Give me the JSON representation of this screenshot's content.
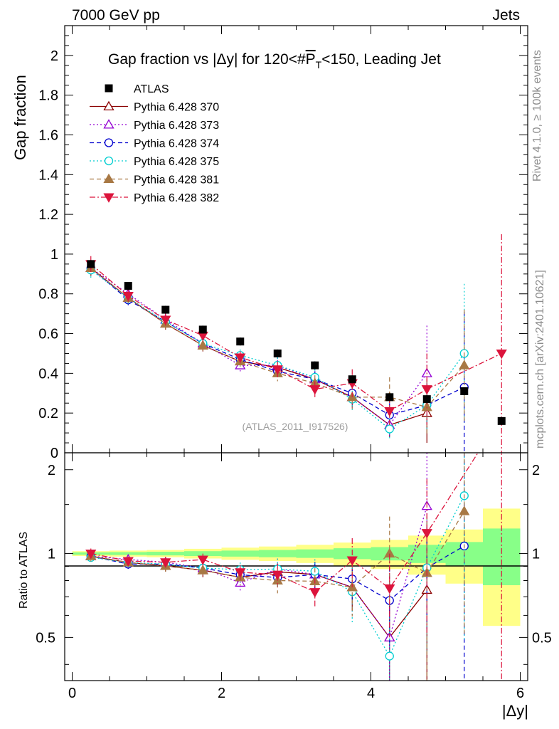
{
  "chart_data": {
    "type": "scatter",
    "header_left": "7000 GeV pp",
    "header_right": "Jets",
    "title": "Gap fraction vs |Δy| for 120<#P̅_T<150, Leading Jet",
    "title_parts": {
      "prefix": "Gap fraction vs |Δy| for 120<#",
      "p": "P",
      "sub": "T",
      "suffix": "<150, Leading Jet"
    },
    "xlabel": "|Δy|",
    "ylabel_top": "Gap fraction",
    "ylabel_bottom": "Ratio to ATLAS",
    "watermark": "(ATLAS_2011_I917526)",
    "side_label_1": "Rivet 4.1.0, ≥ 100k events",
    "side_label_2": "mcplots.cern.ch [arXiv:2401.10621]",
    "xlim": [
      -0.1,
      6.1
    ],
    "ylim_top": [
      0,
      2.15
    ],
    "ylim_bottom": [
      0.35,
      2.3
    ],
    "x_ticks": [
      "0",
      "2",
      "4",
      "6"
    ],
    "y_ticks_top": [
      "0",
      "0.2",
      "0.4",
      "0.6",
      "0.8",
      "1",
      "1.2",
      "1.4",
      "1.6",
      "1.8",
      "2"
    ],
    "y_ticks_bottom": [
      "0.5",
      "1",
      "2"
    ],
    "x": [
      0.25,
      0.75,
      1.25,
      1.75,
      2.25,
      2.75,
      3.25,
      3.75,
      4.25,
      4.75,
      5.25,
      5.75
    ],
    "data": {
      "name": "ATLAS",
      "values": [
        0.95,
        0.84,
        0.72,
        0.62,
        0.56,
        0.5,
        0.44,
        0.37,
        0.28,
        0.27,
        0.31,
        0.16
      ],
      "errors": [
        0.02,
        0.02,
        0.02,
        0.02,
        0.02,
        0.02,
        0.02,
        0.02,
        0.02,
        0.02,
        0.02,
        0.02
      ],
      "band_inner": [
        0.01,
        0.012,
        0.015,
        0.02,
        0.025,
        0.03,
        0.035,
        0.045,
        0.055,
        0.075,
        0.1,
        0.23
      ],
      "band_outer": [
        0.02,
        0.025,
        0.03,
        0.04,
        0.05,
        0.06,
        0.075,
        0.095,
        0.12,
        0.16,
        0.22,
        0.45
      ]
    },
    "series": [
      {
        "name": "Pythia 6.428 370",
        "color": "#8b0000",
        "marker": "triangle-open",
        "dash": "",
        "label_key": "s370",
        "values": [
          0.93,
          0.78,
          0.65,
          0.54,
          0.46,
          0.43,
          0.37,
          0.28,
          0.14,
          0.2,
          null,
          null
        ],
        "errors": [
          0.04,
          0.03,
          0.03,
          0.03,
          0.03,
          0.03,
          0.04,
          0.05,
          0.06,
          0.15,
          null,
          null
        ]
      },
      {
        "name": "Pythia 6.428 373",
        "color": "#9400d3",
        "marker": "triangle-open",
        "dash": "2,3",
        "label_key": "s373",
        "values": [
          0.93,
          0.8,
          0.67,
          0.55,
          0.44,
          0.44,
          0.37,
          0.28,
          0.14,
          0.4,
          null,
          null
        ],
        "errors": [
          0.04,
          0.03,
          0.03,
          0.03,
          0.03,
          0.04,
          0.04,
          0.06,
          0.06,
          0.24,
          null,
          null
        ]
      },
      {
        "name": "Pythia 6.428 374",
        "color": "#0000cd",
        "marker": "circle-open",
        "dash": "6,4",
        "label_key": "s374",
        "values": [
          0.93,
          0.77,
          0.66,
          0.55,
          0.47,
          0.41,
          0.37,
          0.3,
          0.19,
          0.24,
          0.33,
          null
        ],
        "errors": [
          0.04,
          0.03,
          0.03,
          0.03,
          0.03,
          0.03,
          0.04,
          0.05,
          0.06,
          0.1,
          0.38,
          null
        ]
      },
      {
        "name": "Pythia 6.428 375",
        "color": "#00ced1",
        "marker": "circle-open",
        "dash": "2,3",
        "label_key": "s375",
        "values": [
          0.92,
          0.78,
          0.66,
          0.55,
          0.49,
          0.44,
          0.38,
          0.27,
          0.12,
          0.24,
          0.5,
          null
        ],
        "errors": [
          0.04,
          0.03,
          0.03,
          0.03,
          0.03,
          0.04,
          0.04,
          0.06,
          0.05,
          0.12,
          0.35,
          null
        ]
      },
      {
        "name": "Pythia 6.428 381",
        "color": "#a87844",
        "marker": "triangle-filled",
        "dash": "6,4",
        "label_key": "s381",
        "values": [
          0.93,
          0.78,
          0.65,
          0.54,
          0.46,
          0.4,
          0.35,
          0.28,
          0.28,
          0.23,
          0.44,
          null
        ],
        "errors": [
          0.04,
          0.03,
          0.03,
          0.03,
          0.03,
          0.04,
          0.04,
          0.06,
          0.1,
          0.14,
          0.28,
          null
        ]
      },
      {
        "name": "Pythia 6.428 382",
        "color": "#dc143c",
        "marker": "triangledown-filled",
        "dash": "8,3,2,3",
        "label_key": "s382",
        "values": [
          0.95,
          0.79,
          0.67,
          0.59,
          0.48,
          0.42,
          0.32,
          0.35,
          0.21,
          0.32,
          null,
          0.5
        ],
        "errors": [
          0.04,
          0.03,
          0.03,
          0.03,
          0.03,
          0.04,
          0.04,
          0.07,
          0.07,
          0.18,
          null,
          0.6
        ]
      }
    ]
  }
}
